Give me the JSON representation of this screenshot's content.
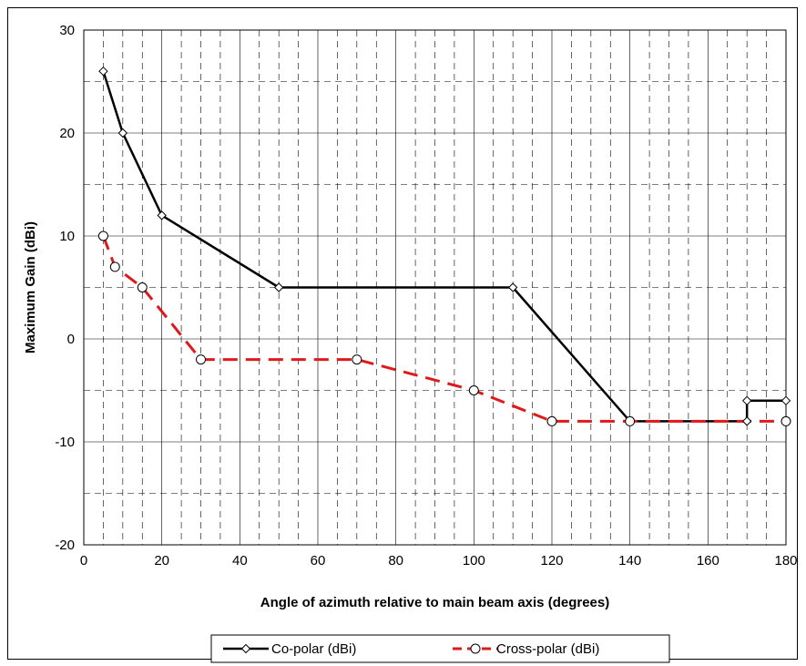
{
  "chart_data": {
    "type": "line",
    "title": "",
    "xlabel": "Angle of azimuth relative to main beam axis (degrees)",
    "ylabel": "Maximum Gain (dBi)",
    "xlim": [
      0,
      180
    ],
    "ylim": [
      -20,
      30
    ],
    "x_ticks": [
      0,
      20,
      40,
      60,
      80,
      100,
      120,
      140,
      160,
      180
    ],
    "y_ticks": [
      -20,
      -10,
      0,
      10,
      20,
      30
    ],
    "x_tick_labels": [
      "0",
      "20",
      "40",
      "60",
      "80",
      "100",
      "120",
      "140",
      "160",
      "180"
    ],
    "y_tick_labels": [
      "-20",
      "-10",
      "0",
      "10",
      "20",
      "30"
    ],
    "grid": true,
    "legend_position": "bottom",
    "series": [
      {
        "name": "Co-polar (dBi)",
        "color": "#000000",
        "style": "solid",
        "marker": "diamond",
        "x": [
          5,
          10,
          20,
          50,
          110,
          140,
          170,
          170,
          180
        ],
        "y": [
          26,
          20,
          12,
          5,
          5,
          -8,
          -8,
          -6,
          -6
        ]
      },
      {
        "name": "Cross-polar (dBi)",
        "color": "#e0191b",
        "style": "dashed",
        "marker": "circle",
        "x": [
          5,
          8,
          15,
          30,
          70,
          100,
          120,
          140,
          180
        ],
        "y": [
          10,
          7,
          5,
          -2,
          -2,
          -5,
          -8,
          -8,
          -8
        ]
      }
    ]
  }
}
